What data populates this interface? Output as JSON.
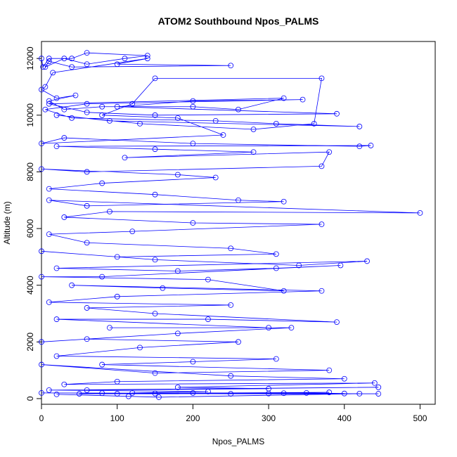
{
  "chart_data": {
    "type": "line",
    "title": "ATOM2 Southbound Npos_PALMS",
    "xlabel": "Npos_PALMS",
    "ylabel": "Altitude (m)",
    "xlim": [
      0,
      520
    ],
    "ylim": [
      -200,
      12600
    ],
    "xticks": [
      0,
      100,
      200,
      300,
      400,
      500
    ],
    "yticks": [
      0,
      2000,
      4000,
      6000,
      8000,
      10000,
      12000
    ],
    "series_color": "#0000ff",
    "marker": "open-circle",
    "grid": false,
    "legend": "none",
    "series": [
      {
        "name": "",
        "points": [
          [
            0,
            12000
          ],
          [
            2,
            11700
          ],
          [
            10,
            12000
          ],
          [
            40,
            12000
          ],
          [
            60,
            12200
          ],
          [
            140,
            12100
          ],
          [
            110,
            12000
          ],
          [
            60,
            11800
          ],
          [
            30,
            12000
          ],
          [
            5,
            11700
          ],
          [
            10,
            11900
          ],
          [
            40,
            11700
          ],
          [
            250,
            11750
          ],
          [
            100,
            11800
          ],
          [
            140,
            12000
          ],
          [
            15,
            11500
          ],
          [
            5,
            11000
          ],
          [
            0,
            10900
          ],
          [
            20,
            10600
          ],
          [
            45,
            10700
          ],
          [
            10,
            10500
          ],
          [
            30,
            10200
          ],
          [
            80,
            10300
          ],
          [
            200,
            10300
          ],
          [
            260,
            10200
          ],
          [
            320,
            10600
          ],
          [
            10,
            10400
          ],
          [
            60,
            10100
          ],
          [
            150,
            10000
          ],
          [
            390,
            10050
          ],
          [
            100,
            10300
          ],
          [
            200,
            10500
          ],
          [
            345,
            10550
          ],
          [
            60,
            10400
          ],
          [
            5,
            10200
          ],
          [
            40,
            9900
          ],
          [
            230,
            9800
          ],
          [
            310,
            9700
          ],
          [
            420,
            9600
          ],
          [
            90,
            9800
          ],
          [
            20,
            10000
          ],
          [
            130,
            9700
          ],
          [
            280,
            9500
          ],
          [
            360,
            9700
          ],
          [
            370,
            11300
          ],
          [
            150,
            11300
          ],
          [
            120,
            10400
          ],
          [
            80,
            10000
          ],
          [
            180,
            9900
          ],
          [
            240,
            9300
          ],
          [
            0,
            9000
          ],
          [
            30,
            9200
          ],
          [
            200,
            9000
          ],
          [
            420,
            8900
          ],
          [
            435,
            8930
          ],
          [
            20,
            8900
          ],
          [
            150,
            8800
          ],
          [
            280,
            8700
          ],
          [
            110,
            8500
          ],
          [
            380,
            8700
          ],
          [
            370,
            8200
          ],
          [
            60,
            8000
          ],
          [
            0,
            8100
          ],
          [
            180,
            7900
          ],
          [
            230,
            7800
          ],
          [
            80,
            7600
          ],
          [
            10,
            7400
          ],
          [
            150,
            7200
          ],
          [
            260,
            7000
          ],
          [
            320,
            6950
          ],
          [
            60,
            6800
          ],
          [
            10,
            7000
          ],
          [
            500,
            6550
          ],
          [
            90,
            6600
          ],
          [
            30,
            6400
          ],
          [
            200,
            6200
          ],
          [
            370,
            6150
          ],
          [
            120,
            5900
          ],
          [
            10,
            5800
          ],
          [
            60,
            5500
          ],
          [
            250,
            5300
          ],
          [
            310,
            5100
          ],
          [
            100,
            5000
          ],
          [
            0,
            5200
          ],
          [
            150,
            4900
          ],
          [
            340,
            4700
          ],
          [
            430,
            4850
          ],
          [
            20,
            4600
          ],
          [
            180,
            4500
          ],
          [
            310,
            4600
          ],
          [
            395,
            4700
          ],
          [
            80,
            4300
          ],
          [
            0,
            4300
          ],
          [
            220,
            4200
          ],
          [
            320,
            3800
          ],
          [
            160,
            3900
          ],
          [
            40,
            4000
          ],
          [
            370,
            3800
          ],
          [
            100,
            3600
          ],
          [
            10,
            3400
          ],
          [
            250,
            3300
          ],
          [
            60,
            3200
          ],
          [
            150,
            3000
          ],
          [
            390,
            2700
          ],
          [
            220,
            2800
          ],
          [
            20,
            2800
          ],
          [
            300,
            2500
          ],
          [
            90,
            2500
          ],
          [
            330,
            2500
          ],
          [
            180,
            2300
          ],
          [
            0,
            2000
          ],
          [
            60,
            2100
          ],
          [
            260,
            2000
          ],
          [
            130,
            1800
          ],
          [
            20,
            1500
          ],
          [
            310,
            1400
          ],
          [
            200,
            1300
          ],
          [
            80,
            1200
          ],
          [
            380,
            1000
          ],
          [
            150,
            900
          ],
          [
            0,
            1200
          ],
          [
            250,
            800
          ],
          [
            400,
            700
          ],
          [
            100,
            600
          ],
          [
            30,
            500
          ],
          [
            440,
            550
          ],
          [
            180,
            400
          ],
          [
            300,
            350
          ],
          [
            60,
            300
          ],
          [
            445,
            400
          ],
          [
            10,
            300
          ],
          [
            220,
            250
          ],
          [
            120,
            200
          ],
          [
            350,
            200
          ],
          [
            400,
            180
          ],
          [
            0,
            200
          ],
          [
            150,
            180
          ],
          [
            250,
            170
          ],
          [
            445,
            170
          ],
          [
            80,
            190
          ],
          [
            200,
            200
          ],
          [
            320,
            190
          ],
          [
            380,
            220
          ],
          [
            50,
            170
          ],
          [
            100,
            170
          ],
          [
            300,
            180
          ],
          [
            420,
            175
          ],
          [
            155,
            50
          ],
          [
            115,
            80
          ],
          [
            20,
            150
          ]
        ]
      }
    ]
  }
}
